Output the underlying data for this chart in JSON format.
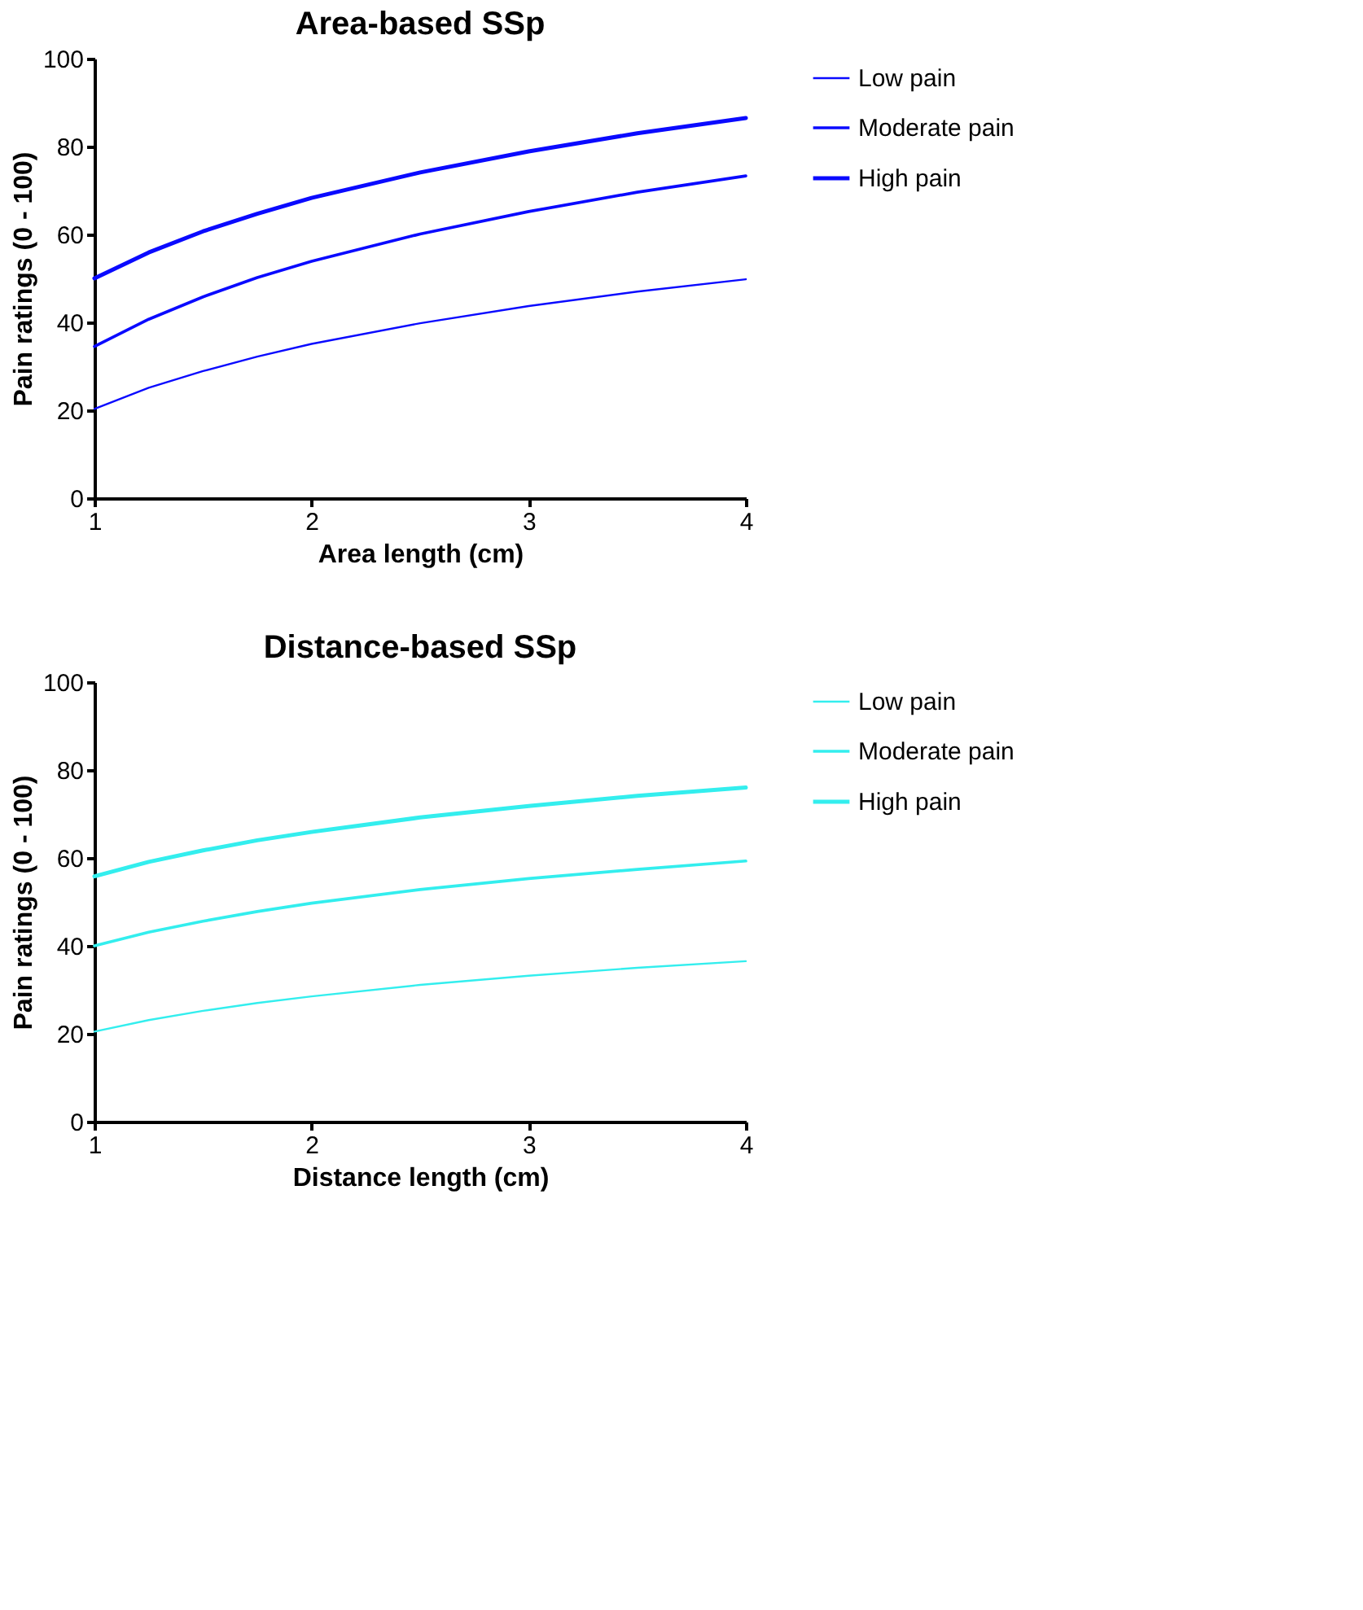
{
  "chart_data": [
    {
      "type": "line",
      "title": "Area-based SSp",
      "xlabel": "Area length (cm)",
      "ylabel": "Pain ratings (0 - 100)",
      "x": [
        1,
        1.25,
        1.5,
        1.75,
        2,
        2.5,
        3,
        3.5,
        4
      ],
      "xlim": [
        1,
        4
      ],
      "xticks": [
        1,
        2,
        3,
        4
      ],
      "ylim": [
        0,
        100
      ],
      "yticks": [
        0,
        20,
        40,
        60,
        80,
        100
      ],
      "grid": false,
      "legend": "top right",
      "marker": "none",
      "line_style": "solid",
      "series": [
        {
          "name": "Low pain",
          "color": "#0a0aff",
          "values": [
            20.3,
            25.1,
            28.9,
            32.2,
            35.1,
            39.8,
            43.7,
            47.0,
            49.8
          ]
        },
        {
          "name": "Moderate pain",
          "color": "#0a0aff",
          "values": [
            34.5,
            40.7,
            45.8,
            50.2,
            53.9,
            60.1,
            65.2,
            69.6,
            73.3
          ]
        },
        {
          "name": "High pain",
          "color": "#0a0aff",
          "values": [
            50,
            55.9,
            60.7,
            64.7,
            68.3,
            74.1,
            78.9,
            83.0,
            86.5
          ]
        }
      ]
    },
    {
      "type": "line",
      "title": "Distance-based SSp",
      "xlabel": "Distance length (cm)",
      "ylabel": "Pain ratings (0 - 100)",
      "x": [
        1,
        1.25,
        1.5,
        1.75,
        2,
        2.5,
        3,
        3.5,
        4
      ],
      "xlim": [
        1,
        4
      ],
      "xticks": [
        1,
        2,
        3,
        4
      ],
      "ylim": [
        0,
        100
      ],
      "yticks": [
        0,
        20,
        40,
        60,
        80,
        100
      ],
      "grid": false,
      "legend": "top right",
      "marker": "none",
      "line_style": "solid",
      "series": [
        {
          "name": "Low pain",
          "color": "#33eeee",
          "values": [
            20.5,
            23.1,
            25.2,
            27.0,
            28.5,
            31.1,
            33.2,
            35.0,
            36.5
          ]
        },
        {
          "name": "Moderate pain",
          "color": "#33eeee",
          "values": [
            40.0,
            43.1,
            45.6,
            47.8,
            49.7,
            52.8,
            55.3,
            57.4,
            59.3
          ]
        },
        {
          "name": "High pain",
          "color": "#33eeee",
          "values": [
            55.8,
            59.1,
            61.7,
            64.0,
            65.9,
            69.2,
            71.8,
            74.1,
            76.0
          ]
        }
      ]
    }
  ]
}
